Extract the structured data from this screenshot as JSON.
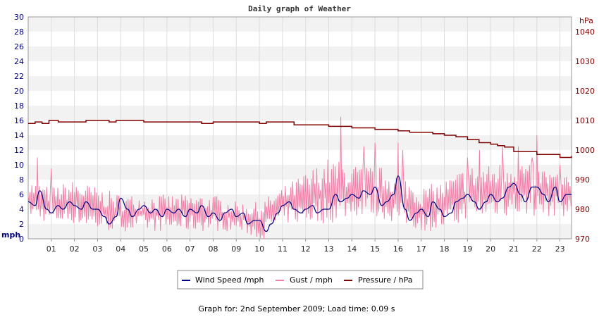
{
  "chart_data": {
    "type": "line",
    "title": "Daily graph of Weather",
    "y_left": {
      "unit": "mph",
      "min": 0,
      "max": 30,
      "ticks": [
        "0",
        "2",
        "4",
        "6",
        "8",
        "10",
        "12",
        "14",
        "16",
        "18",
        "20",
        "22",
        "24",
        "26",
        "28",
        "30"
      ]
    },
    "y_right": {
      "unit": "hPa",
      "min": 970,
      "max": 1045,
      "ticks": [
        "970",
        "980",
        "990",
        "1000",
        "1010",
        "1020",
        "1030",
        "1040"
      ]
    },
    "x_labels": [
      "01",
      "02",
      "03",
      "04",
      "05",
      "06",
      "07",
      "08",
      "09",
      "10",
      "11",
      "12",
      "13",
      "14",
      "15",
      "16",
      "17",
      "18",
      "19",
      "20",
      "21",
      "22",
      "23"
    ],
    "x_range_hours": [
      0,
      23.5
    ],
    "grid": "horizontal bands",
    "legend": {
      "placement": "bottom-center",
      "entries": [
        {
          "name": "Wind Speed /mph",
          "color": "#000080"
        },
        {
          "name": "Gust / mph",
          "color": "#f080a8"
        },
        {
          "name": "Pressure / hPa",
          "color": "#800000"
        }
      ]
    },
    "series": [
      {
        "name": "Wind Speed /mph",
        "axis": "left",
        "color": "#000080",
        "points": [
          [
            0,
            5
          ],
          [
            0.3,
            4.5
          ],
          [
            0.5,
            6.5
          ],
          [
            0.8,
            4
          ],
          [
            1,
            3.5
          ],
          [
            1.3,
            4.5
          ],
          [
            1.5,
            4
          ],
          [
            1.8,
            5
          ],
          [
            2,
            4.5
          ],
          [
            2.3,
            4
          ],
          [
            2.5,
            5
          ],
          [
            2.8,
            4
          ],
          [
            3,
            4
          ],
          [
            3.3,
            3
          ],
          [
            3.5,
            2
          ],
          [
            3.8,
            3
          ],
          [
            4,
            5.5
          ],
          [
            4.3,
            4
          ],
          [
            4.5,
            3
          ],
          [
            4.8,
            4
          ],
          [
            5,
            4.5
          ],
          [
            5.3,
            3.5
          ],
          [
            5.5,
            4
          ],
          [
            5.8,
            3
          ],
          [
            6,
            4
          ],
          [
            6.3,
            3.5
          ],
          [
            6.5,
            4
          ],
          [
            6.8,
            3
          ],
          [
            7,
            4
          ],
          [
            7.3,
            3.5
          ],
          [
            7.5,
            4.5
          ],
          [
            7.8,
            3
          ],
          [
            8,
            3.5
          ],
          [
            8.3,
            2.5
          ],
          [
            8.5,
            3.5
          ],
          [
            8.8,
            4
          ],
          [
            9,
            3
          ],
          [
            9.3,
            3.5
          ],
          [
            9.5,
            2
          ],
          [
            9.8,
            2.5
          ],
          [
            10,
            2.5
          ],
          [
            10.3,
            1
          ],
          [
            10.5,
            2
          ],
          [
            10.8,
            3.5
          ],
          [
            11,
            4.5
          ],
          [
            11.3,
            5
          ],
          [
            11.5,
            4
          ],
          [
            11.8,
            3.5
          ],
          [
            12,
            4
          ],
          [
            12.3,
            4.5
          ],
          [
            12.5,
            3.5
          ],
          [
            12.8,
            4
          ],
          [
            13,
            4
          ],
          [
            13.3,
            6
          ],
          [
            13.5,
            5
          ],
          [
            13.8,
            5.5
          ],
          [
            14,
            6
          ],
          [
            14.3,
            5.5
          ],
          [
            14.5,
            6.5
          ],
          [
            14.8,
            6
          ],
          [
            15,
            7
          ],
          [
            15.3,
            4.5
          ],
          [
            15.5,
            5
          ],
          [
            15.8,
            6
          ],
          [
            16,
            8.5
          ],
          [
            16.3,
            4
          ],
          [
            16.5,
            2.5
          ],
          [
            16.8,
            3.5
          ],
          [
            17,
            4
          ],
          [
            17.3,
            3
          ],
          [
            17.5,
            5
          ],
          [
            17.8,
            4
          ],
          [
            18,
            3
          ],
          [
            18.3,
            3.5
          ],
          [
            18.5,
            5
          ],
          [
            18.8,
            5.5
          ],
          [
            19,
            6
          ],
          [
            19.3,
            5
          ],
          [
            19.5,
            4
          ],
          [
            19.8,
            5
          ],
          [
            20,
            6
          ],
          [
            20.3,
            5
          ],
          [
            20.5,
            5.5
          ],
          [
            20.8,
            7
          ],
          [
            21,
            7.5
          ],
          [
            21.3,
            6
          ],
          [
            21.5,
            5
          ],
          [
            21.8,
            7
          ],
          [
            22,
            7
          ],
          [
            22.3,
            6
          ],
          [
            22.5,
            5
          ],
          [
            22.8,
            7
          ],
          [
            23,
            5
          ],
          [
            23.3,
            6
          ],
          [
            23.5,
            6
          ]
        ]
      },
      {
        "name": "Gust / mph",
        "axis": "left",
        "color": "#f080a8",
        "ranges": [
          [
            0,
            3,
            8
          ],
          [
            1,
            2,
            7
          ],
          [
            2,
            2,
            8
          ],
          [
            3,
            1,
            7
          ],
          [
            4,
            1,
            6
          ],
          [
            5,
            1,
            6
          ],
          [
            6,
            1,
            6
          ],
          [
            7,
            1,
            6
          ],
          [
            8,
            1,
            6
          ],
          [
            9,
            1,
            5
          ],
          [
            10,
            0,
            5
          ],
          [
            11,
            2,
            7
          ],
          [
            12,
            2,
            9
          ],
          [
            13,
            2,
            11
          ],
          [
            14,
            3,
            10
          ],
          [
            15,
            3,
            10
          ],
          [
            16,
            2,
            9
          ],
          [
            17,
            1,
            7
          ],
          [
            18,
            1,
            8
          ],
          [
            19,
            2,
            10
          ],
          [
            20,
            3,
            10
          ],
          [
            21,
            3,
            11
          ],
          [
            22,
            3,
            10
          ],
          [
            23,
            3,
            9
          ],
          [
            23.5,
            3,
            8
          ]
        ],
        "peaks": [
          [
            0.4,
            11
          ],
          [
            1,
            9.5
          ],
          [
            10.2,
            0
          ],
          [
            13.5,
            16.5
          ],
          [
            14.5,
            12.5
          ],
          [
            15,
            13
          ],
          [
            16,
            13
          ],
          [
            16.2,
            12
          ],
          [
            19,
            11
          ],
          [
            19.5,
            12
          ],
          [
            20.5,
            12.5
          ],
          [
            21.2,
            12.5
          ],
          [
            21.8,
            11
          ],
          [
            22,
            14
          ],
          [
            23,
            10
          ]
        ]
      },
      {
        "name": "Pressure / hPa",
        "axis": "right",
        "color": "#800000",
        "points": [
          [
            0,
            1009
          ],
          [
            0.3,
            1009.5
          ],
          [
            0.6,
            1009
          ],
          [
            0.9,
            1010
          ],
          [
            1,
            1010
          ],
          [
            1.3,
            1009.5
          ],
          [
            2,
            1009.5
          ],
          [
            2.5,
            1010
          ],
          [
            3,
            1010
          ],
          [
            3.5,
            1009.5
          ],
          [
            3.8,
            1010
          ],
          [
            4.5,
            1010
          ],
          [
            5,
            1009.5
          ],
          [
            6,
            1009.5
          ],
          [
            6.3,
            1009.5
          ],
          [
            7,
            1009.5
          ],
          [
            7.5,
            1009
          ],
          [
            8,
            1009.5
          ],
          [
            8.5,
            1009.5
          ],
          [
            9,
            1009.5
          ],
          [
            10,
            1009
          ],
          [
            10.3,
            1009.5
          ],
          [
            11,
            1009.5
          ],
          [
            11.5,
            1008.5
          ],
          [
            12,
            1008.5
          ],
          [
            13,
            1008
          ],
          [
            13.5,
            1008
          ],
          [
            14,
            1007.5
          ],
          [
            14.5,
            1007.5
          ],
          [
            15,
            1007
          ],
          [
            15.5,
            1007
          ],
          [
            16,
            1006.5
          ],
          [
            16.5,
            1006
          ],
          [
            17,
            1006
          ],
          [
            17.5,
            1005.5
          ],
          [
            18,
            1005
          ],
          [
            18.5,
            1004.5
          ],
          [
            19,
            1003.5
          ],
          [
            19.5,
            1002.5
          ],
          [
            20,
            1002
          ],
          [
            20.3,
            1001.5
          ],
          [
            20.6,
            1001
          ],
          [
            21,
            999.5
          ],
          [
            21.5,
            999.5
          ],
          [
            22,
            998.5
          ],
          [
            22.5,
            998.5
          ],
          [
            23,
            997.5
          ],
          [
            23.5,
            998
          ]
        ]
      }
    ]
  },
  "footer": {
    "text": "Graph for: 2nd September 2009; Load time: 0.09 s"
  }
}
